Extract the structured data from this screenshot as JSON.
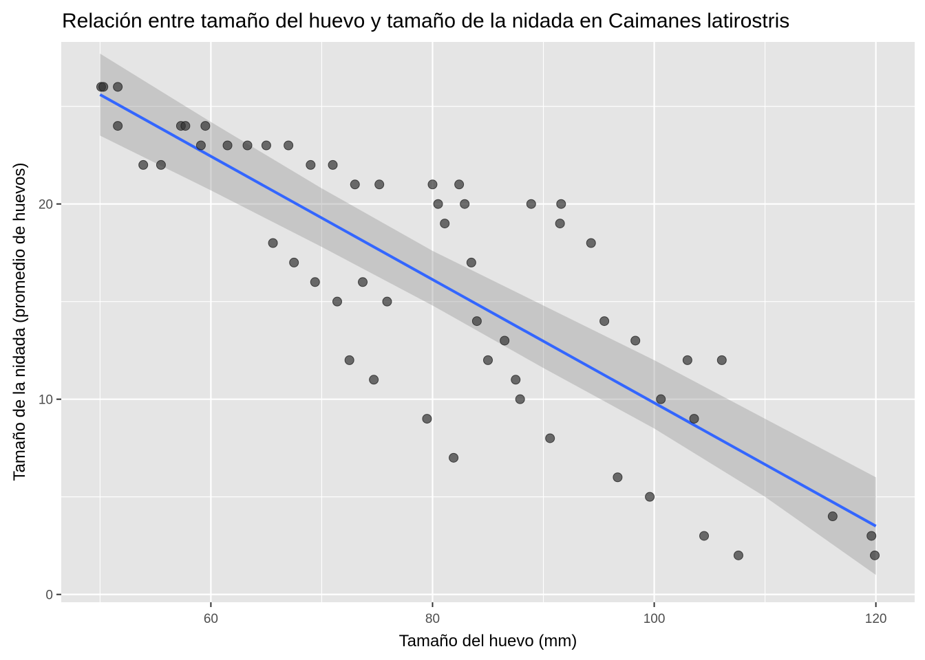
{
  "chart_data": {
    "type": "scatter",
    "title": "Relación entre tamaño del huevo y tamaño de la nidada en Caimanes latirostris",
    "xlabel": "Tamaño del huevo (mm)",
    "ylabel": "Tamaño de la nidada (promedio de huevos)",
    "xlim": [
      46.5,
      123.5
    ],
    "ylim": [
      -0.4,
      28.3
    ],
    "x_ticks": [
      60,
      80,
      100,
      120
    ],
    "y_ticks": [
      0,
      10,
      20
    ],
    "grid": true,
    "legend": "none",
    "colors": {
      "panel": "#e5e5e5",
      "grid": "#ffffff",
      "points": "#333333",
      "line": "#3366ff",
      "ribbon": "#999999"
    },
    "points": [
      {
        "x": 50.1,
        "y": 26
      },
      {
        "x": 50.3,
        "y": 26
      },
      {
        "x": 51.6,
        "y": 26
      },
      {
        "x": 51.6,
        "y": 24
      },
      {
        "x": 53.9,
        "y": 22
      },
      {
        "x": 55.5,
        "y": 22
      },
      {
        "x": 57.3,
        "y": 24
      },
      {
        "x": 57.7,
        "y": 24
      },
      {
        "x": 59.1,
        "y": 23
      },
      {
        "x": 59.5,
        "y": 24
      },
      {
        "x": 61.5,
        "y": 23
      },
      {
        "x": 63.3,
        "y": 23
      },
      {
        "x": 65.0,
        "y": 23
      },
      {
        "x": 65.6,
        "y": 18
      },
      {
        "x": 67.0,
        "y": 23
      },
      {
        "x": 67.5,
        "y": 17
      },
      {
        "x": 69.0,
        "y": 22
      },
      {
        "x": 69.4,
        "y": 16
      },
      {
        "x": 71.0,
        "y": 22
      },
      {
        "x": 71.4,
        "y": 15
      },
      {
        "x": 72.5,
        "y": 12
      },
      {
        "x": 73.0,
        "y": 21
      },
      {
        "x": 73.7,
        "y": 16
      },
      {
        "x": 74.7,
        "y": 11
      },
      {
        "x": 75.2,
        "y": 21
      },
      {
        "x": 75.9,
        "y": 15
      },
      {
        "x": 79.5,
        "y": 9
      },
      {
        "x": 80.0,
        "y": 21
      },
      {
        "x": 80.5,
        "y": 20
      },
      {
        "x": 81.1,
        "y": 19
      },
      {
        "x": 81.9,
        "y": 7
      },
      {
        "x": 82.4,
        "y": 21
      },
      {
        "x": 82.9,
        "y": 20
      },
      {
        "x": 83.5,
        "y": 17
      },
      {
        "x": 84.0,
        "y": 14
      },
      {
        "x": 85.0,
        "y": 12
      },
      {
        "x": 86.5,
        "y": 13
      },
      {
        "x": 87.5,
        "y": 11
      },
      {
        "x": 87.9,
        "y": 10
      },
      {
        "x": 88.9,
        "y": 20
      },
      {
        "x": 90.6,
        "y": 8
      },
      {
        "x": 91.5,
        "y": 19
      },
      {
        "x": 91.6,
        "y": 20
      },
      {
        "x": 94.3,
        "y": 18
      },
      {
        "x": 95.5,
        "y": 14
      },
      {
        "x": 96.7,
        "y": 6
      },
      {
        "x": 98.3,
        "y": 13
      },
      {
        "x": 99.6,
        "y": 5
      },
      {
        "x": 100.6,
        "y": 10
      },
      {
        "x": 103.0,
        "y": 12
      },
      {
        "x": 103.6,
        "y": 9
      },
      {
        "x": 104.5,
        "y": 3
      },
      {
        "x": 106.1,
        "y": 12
      },
      {
        "x": 107.6,
        "y": 2
      },
      {
        "x": 116.1,
        "y": 4
      },
      {
        "x": 119.6,
        "y": 3
      },
      {
        "x": 119.9,
        "y": 2
      }
    ],
    "regression": {
      "x": [
        50,
        120
      ],
      "y": [
        25.6,
        3.5
      ]
    },
    "confidence_band": {
      "x": [
        50,
        60,
        70,
        80,
        90,
        100,
        110,
        120
      ],
      "lower": [
        23.5,
        20.7,
        17.8,
        14.8,
        11.6,
        8.5,
        5.0,
        1.0
      ],
      "upper": [
        27.7,
        24.2,
        20.8,
        17.6,
        14.8,
        12.0,
        9.0,
        6.0
      ]
    }
  }
}
